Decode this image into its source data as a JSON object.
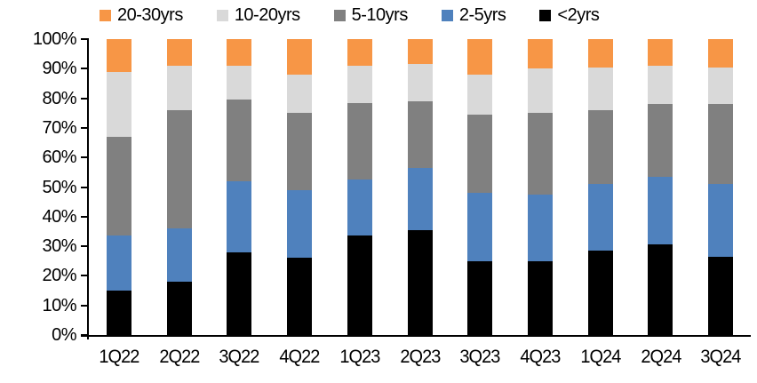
{
  "chart_data": {
    "type": "bar",
    "stacked": true,
    "percent_stacked": true,
    "title": "",
    "xlabel": "",
    "ylabel": "",
    "ylim": [
      0,
      100
    ],
    "grid": false,
    "legend_position": "top",
    "unit": "%",
    "categories": [
      "1Q22",
      "2Q22",
      "3Q22",
      "4Q22",
      "1Q23",
      "2Q23",
      "3Q23",
      "4Q23",
      "1Q24",
      "2Q24",
      "3Q24"
    ],
    "series": [
      {
        "name": "<2yrs",
        "color": "#000000",
        "values": [
          15,
          18,
          28,
          26,
          33.5,
          35.5,
          25,
          25,
          28.5,
          30.5,
          26.5
        ]
      },
      {
        "name": "2-5yrs",
        "color": "#4F81BD",
        "values": [
          18.5,
          18,
          24,
          23,
          19,
          21,
          23,
          22.5,
          22.5,
          23,
          24.5
        ]
      },
      {
        "name": "5-10yrs",
        "color": "#808080",
        "values": [
          33.5,
          40,
          27.5,
          26,
          26,
          22.5,
          26.5,
          27.5,
          25,
          24.5,
          27
        ]
      },
      {
        "name": "10-20yrs",
        "color": "#D9D9D9",
        "values": [
          22,
          15,
          11.5,
          13,
          12.5,
          12.5,
          13.5,
          15,
          14.5,
          13,
          12.5
        ]
      },
      {
        "name": "20-30yrs",
        "color": "#F79646",
        "values": [
          11,
          9,
          9,
          12,
          9,
          8.5,
          12,
          10,
          9.5,
          9,
          9.5
        ]
      }
    ],
    "legend_order": [
      "20-30yrs",
      "10-20yrs",
      "5-10yrs",
      "2-5yrs",
      "<2yrs"
    ],
    "y_tick_labels": [
      "0%",
      "10%",
      "20%",
      "30%",
      "40%",
      "50%",
      "60%",
      "70%",
      "80%",
      "90%",
      "100%"
    ],
    "axis_color": "#000000",
    "background_color": "#ffffff"
  }
}
